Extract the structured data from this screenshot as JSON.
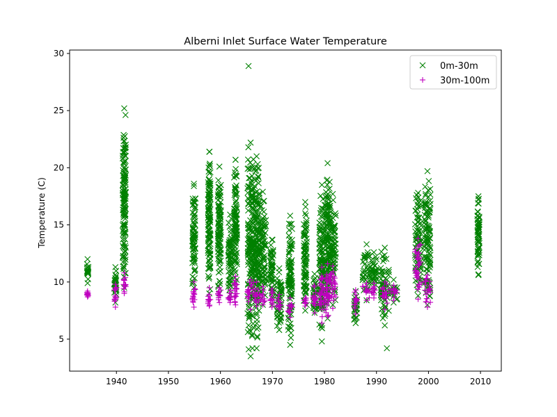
{
  "chart_data": {
    "type": "scatter",
    "title": "Alberni Inlet Surface Water Temperature",
    "xlabel": "",
    "ylabel": "Temperature (C)",
    "xlim": [
      1931,
      2014
    ],
    "ylim": [
      2.2,
      30.3
    ],
    "xticks": [
      1940,
      1950,
      1960,
      1970,
      1980,
      1990,
      2000,
      2010
    ],
    "yticks": [
      5,
      10,
      15,
      20,
      25,
      30
    ],
    "grid": false,
    "legend_position": "top-right",
    "series": [
      {
        "name": "0m-30m",
        "marker": "x",
        "color": "#008000",
        "clusters": [
          {
            "x": [
              1934.3,
              1934.6
            ],
            "y": [
              9.9,
              12.0
            ]
          },
          {
            "x": [
              1939.6,
              1940.0
            ],
            "y": [
              8.2,
              11.3
            ]
          },
          {
            "x": [
              1941.2,
              1941.8
            ],
            "y": [
              9.5,
              25.2
            ]
          },
          {
            "x": [
              1954.6,
              1955.2
            ],
            "y": [
              9.5,
              18.6
            ]
          },
          {
            "x": [
              1957.6,
              1958.1
            ],
            "y": [
              9.0,
              21.4
            ]
          },
          {
            "x": [
              1959.5,
              1960.1
            ],
            "y": [
              9.0,
              20.1
            ]
          },
          {
            "x": [
              1961.5,
              1962.2
            ],
            "y": [
              8.9,
              15.9
            ]
          },
          {
            "x": [
              1962.6,
              1963.2
            ],
            "y": [
              9.6,
              20.7
            ]
          },
          {
            "x": [
              1965.2,
              1966.4
            ],
            "y": [
              3.5,
              22.2
            ]
          },
          {
            "x": [
              1966.4,
              1967.5
            ],
            "y": [
              4.2,
              21.0
            ]
          },
          {
            "x": [
              1967.5,
              1968.8
            ],
            "y": [
              8.0,
              17.9
            ]
          },
          {
            "x": [
              1969.6,
              1970.2
            ],
            "y": [
              8.0,
              13.7
            ]
          },
          {
            "x": [
              1970.8,
              1971.8
            ],
            "y": [
              5.8,
              11.2
            ]
          },
          {
            "x": [
              1973.0,
              1973.8
            ],
            "y": [
              4.5,
              15.8
            ]
          },
          {
            "x": [
              1976.0,
              1976.6
            ],
            "y": [
              7.5,
              17.0
            ]
          },
          {
            "x": [
              1977.8,
              1978.4
            ],
            "y": [
              7.3,
              10.7
            ]
          },
          {
            "x": [
              1979.0,
              1980.0
            ],
            "y": [
              4.8,
              18.5
            ]
          },
          {
            "x": [
              1980.2,
              1981.0
            ],
            "y": [
              6.8,
              20.4
            ]
          },
          {
            "x": [
              1981.0,
              1982.2
            ],
            "y": [
              8.0,
              17.7
            ]
          },
          {
            "x": [
              1985.7,
              1986.3
            ],
            "y": [
              6.4,
              9.2
            ]
          },
          {
            "x": [
              1987.3,
              1988.9
            ],
            "y": [
              8.4,
              13.3
            ]
          },
          {
            "x": [
              1989.0,
              1990.0
            ],
            "y": [
              9.2,
              12.6
            ]
          },
          {
            "x": [
              1990.8,
              1992.4
            ],
            "y": [
              6.2,
              13.0
            ]
          },
          {
            "x": [
              1992.6,
              1994.0
            ],
            "y": [
              8.2,
              10.2
            ]
          },
          {
            "x": [
              1997.4,
              1998.6
            ],
            "y": [
              8.8,
              17.8
            ]
          },
          {
            "x": [
              1999.2,
              2000.4
            ],
            "y": [
              8.0,
              19.7
            ]
          },
          {
            "x": [
              2009.4,
              2009.8
            ],
            "y": [
              10.6,
              17.5
            ]
          }
        ],
        "outliers": [
          {
            "x": 1965.4,
            "y": 28.9
          },
          {
            "x": 1970.0,
            "y": 13.7
          },
          {
            "x": 1992.0,
            "y": 4.2
          },
          {
            "x": 1962.9,
            "y": 20.7
          },
          {
            "x": 1957.9,
            "y": 21.4
          },
          {
            "x": 2000.0,
            "y": 12.0
          },
          {
            "x": 2009.6,
            "y": 17.2
          },
          {
            "x": 2009.6,
            "y": 15.2
          },
          {
            "x": 2009.6,
            "y": 14.1
          },
          {
            "x": 2009.6,
            "y": 13.0
          }
        ]
      },
      {
        "name": "30m-100m",
        "marker": "+",
        "color": "#bf00bf",
        "clusters": [
          {
            "x": [
              1934.3,
              1934.6
            ],
            "y": [
              8.7,
              9.2
            ]
          },
          {
            "x": [
              1939.6,
              1940.0
            ],
            "y": [
              7.8,
              9.8
            ]
          },
          {
            "x": [
              1941.2,
              1941.8
            ],
            "y": [
              9.0,
              10.8
            ]
          },
          {
            "x": [
              1954.6,
              1955.2
            ],
            "y": [
              7.8,
              10.0
            ]
          },
          {
            "x": [
              1957.6,
              1958.1
            ],
            "y": [
              7.9,
              9.5
            ]
          },
          {
            "x": [
              1959.5,
              1960.1
            ],
            "y": [
              8.2,
              9.5
            ]
          },
          {
            "x": [
              1961.5,
              1962.2
            ],
            "y": [
              8.2,
              9.3
            ]
          },
          {
            "x": [
              1962.6,
              1963.2
            ],
            "y": [
              8.0,
              10.5
            ]
          },
          {
            "x": [
              1965.2,
              1966.4
            ],
            "y": [
              7.6,
              10.2
            ]
          },
          {
            "x": [
              1966.4,
              1967.5
            ],
            "y": [
              7.9,
              10.0
            ]
          },
          {
            "x": [
              1967.5,
              1968.8
            ],
            "y": [
              8.0,
              9.6
            ]
          },
          {
            "x": [
              1969.6,
              1970.2
            ],
            "y": [
              7.8,
              9.4
            ]
          },
          {
            "x": [
              1970.8,
              1971.8
            ],
            "y": [
              7.6,
              8.9
            ]
          },
          {
            "x": [
              1973.0,
              1973.8
            ],
            "y": [
              6.9,
              8.6
            ]
          },
          {
            "x": [
              1976.0,
              1976.6
            ],
            "y": [
              7.9,
              8.6
            ]
          },
          {
            "x": [
              1977.8,
              1978.4
            ],
            "y": [
              7.3,
              9.7
            ]
          },
          {
            "x": [
              1979.0,
              1980.0
            ],
            "y": [
              6.4,
              11.3
            ]
          },
          {
            "x": [
              1980.2,
              1981.0
            ],
            "y": [
              7.0,
              11.6
            ]
          },
          {
            "x": [
              1981.0,
              1982.2
            ],
            "y": [
              7.7,
              11.4
            ]
          },
          {
            "x": [
              1985.7,
              1986.3
            ],
            "y": [
              7.2,
              9.3
            ]
          },
          {
            "x": [
              1987.3,
              1988.9
            ],
            "y": [
              8.4,
              9.9
            ]
          },
          {
            "x": [
              1989.0,
              1990.0
            ],
            "y": [
              8.6,
              9.9
            ]
          },
          {
            "x": [
              1990.8,
              1992.4
            ],
            "y": [
              7.6,
              10.0
            ]
          },
          {
            "x": [
              1992.6,
              1994.0
            ],
            "y": [
              8.4,
              9.7
            ]
          },
          {
            "x": [
              1997.4,
              1998.6
            ],
            "y": [
              8.5,
              13.8
            ]
          },
          {
            "x": [
              1999.2,
              2000.4
            ],
            "y": [
              7.8,
              10.6
            ]
          }
        ],
        "outliers": []
      }
    ]
  }
}
